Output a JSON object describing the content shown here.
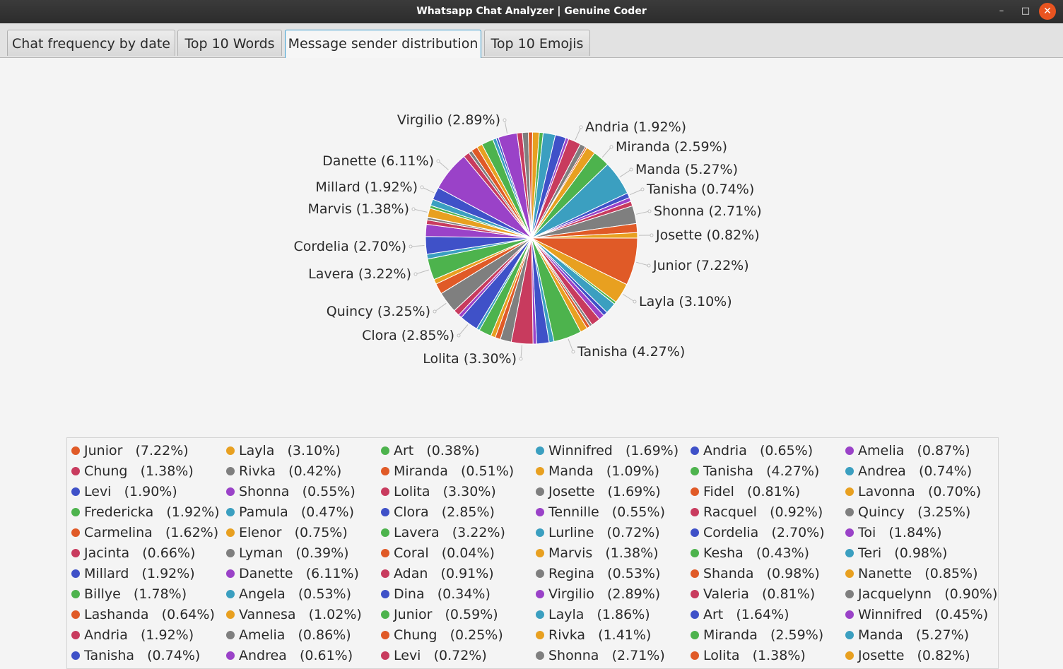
{
  "window": {
    "title": "Whatsapp Chat Analyzer | Genuine Coder",
    "minimize_glyph": "–",
    "maximize_glyph": "□",
    "close_glyph": "✕"
  },
  "tabs": [
    {
      "label": "Chat frequency by date",
      "active": false
    },
    {
      "label": "Top 10 Words",
      "active": false
    },
    {
      "label": "Message sender distribution",
      "active": true
    },
    {
      "label": "Top 10 Emojis",
      "active": false
    }
  ],
  "palette": [
    "#e05a27",
    "#e8a020",
    "#4db34d",
    "#3b9fc0",
    "#3f51c8",
    "#9a42c8",
    "#c83b5e",
    "#7f7f7f"
  ],
  "chart_data": {
    "type": "pie",
    "start_angle_deg": 0,
    "direction": "clockwise",
    "legend_position": "bottom",
    "slices": [
      {
        "name": "Junior",
        "value": 7.22,
        "label": "Junior   (7.22%)"
      },
      {
        "name": "Layla",
        "value": 3.1,
        "label": "Layla   (3.10%)"
      },
      {
        "name": "Art",
        "value": 0.38,
        "label": "Art   (0.38%)"
      },
      {
        "name": "Winnifred",
        "value": 1.69,
        "label": "Winnifred   (1.69%)"
      },
      {
        "name": "Andria",
        "value": 0.65,
        "label": "Andria   (0.65%)"
      },
      {
        "name": "Amelia",
        "value": 0.87,
        "label": "Amelia   (0.87%)"
      },
      {
        "name": "Chung",
        "value": 1.38,
        "label": "Chung   (1.38%)"
      },
      {
        "name": "Rivka",
        "value": 0.42,
        "label": "Rivka   (0.42%)"
      },
      {
        "name": "Miranda",
        "value": 0.51,
        "label": "Miranda   (0.51%)"
      },
      {
        "name": "Manda",
        "value": 1.09,
        "label": "Manda   (1.09%)"
      },
      {
        "name": "Tanisha",
        "value": 4.27,
        "label": "Tanisha   (4.27%)"
      },
      {
        "name": "Andrea",
        "value": 0.74,
        "label": "Andrea   (0.74%)"
      },
      {
        "name": "Levi",
        "value": 1.9,
        "label": "Levi   (1.90%)"
      },
      {
        "name": "Shonna",
        "value": 0.55,
        "label": "Shonna   (0.55%)"
      },
      {
        "name": "Lolita",
        "value": 3.3,
        "label": "Lolita   (3.30%)"
      },
      {
        "name": "Josette",
        "value": 1.69,
        "label": "Josette   (1.69%)"
      },
      {
        "name": "Fidel",
        "value": 0.81,
        "label": "Fidel   (0.81%)"
      },
      {
        "name": "Lavonna",
        "value": 0.7,
        "label": "Lavonna   (0.70%)"
      },
      {
        "name": "Fredericka",
        "value": 1.92,
        "label": "Fredericka   (1.92%)"
      },
      {
        "name": "Pamula",
        "value": 0.47,
        "label": "Pamula   (0.47%)"
      },
      {
        "name": "Clora",
        "value": 2.85,
        "label": "Clora   (2.85%)"
      },
      {
        "name": "Tennille",
        "value": 0.55,
        "label": "Tennille   (0.55%)"
      },
      {
        "name": "Racquel",
        "value": 0.92,
        "label": "Racquel   (0.92%)"
      },
      {
        "name": "Quincy",
        "value": 3.25,
        "label": "Quincy   (3.25%)"
      },
      {
        "name": "Carmelina",
        "value": 1.62,
        "label": "Carmelina   (1.62%)"
      },
      {
        "name": "Elenor",
        "value": 0.75,
        "label": "Elenor   (0.75%)"
      },
      {
        "name": "Lavera",
        "value": 3.22,
        "label": "Lavera   (3.22%)"
      },
      {
        "name": "Lurline",
        "value": 0.72,
        "label": "Lurline   (0.72%)"
      },
      {
        "name": "Cordelia",
        "value": 2.7,
        "label": "Cordelia   (2.70%)"
      },
      {
        "name": "Toi",
        "value": 1.84,
        "label": "Toi   (1.84%)"
      },
      {
        "name": "Jacinta",
        "value": 0.66,
        "label": "Jacinta   (0.66%)"
      },
      {
        "name": "Lyman",
        "value": 0.39,
        "label": "Lyman   (0.39%)"
      },
      {
        "name": "Coral",
        "value": 0.04,
        "label": "Coral   (0.04%)"
      },
      {
        "name": "Marvis",
        "value": 1.38,
        "label": "Marvis   (1.38%)"
      },
      {
        "name": "Kesha",
        "value": 0.43,
        "label": "Kesha   (0.43%)"
      },
      {
        "name": "Teri",
        "value": 0.98,
        "label": "Teri   (0.98%)"
      },
      {
        "name": "Millard",
        "value": 1.92,
        "label": "Millard   (1.92%)"
      },
      {
        "name": "Danette",
        "value": 6.11,
        "label": "Danette   (6.11%)"
      },
      {
        "name": "Adan",
        "value": 0.91,
        "label": "Adan   (0.91%)"
      },
      {
        "name": "Regina",
        "value": 0.53,
        "label": "Regina   (0.53%)"
      },
      {
        "name": "Shanda",
        "value": 0.98,
        "label": "Shanda   (0.98%)"
      },
      {
        "name": "Nanette",
        "value": 0.85,
        "label": "Nanette   (0.85%)"
      },
      {
        "name": "Billye",
        "value": 1.78,
        "label": "Billye   (1.78%)"
      },
      {
        "name": "Angela",
        "value": 0.53,
        "label": "Angela   (0.53%)"
      },
      {
        "name": "Dina",
        "value": 0.34,
        "label": "Dina   (0.34%)"
      },
      {
        "name": "Virgilio",
        "value": 2.89,
        "label": "Virgilio   (2.89%)"
      },
      {
        "name": "Valeria",
        "value": 0.81,
        "label": "Valeria   (0.81%)"
      },
      {
        "name": "Jacquelynn",
        "value": 0.9,
        "label": "Jacquelynn   (0.90%)"
      },
      {
        "name": "Lashanda",
        "value": 0.64,
        "label": "Lashanda   (0.64%)"
      },
      {
        "name": "Vannesa",
        "value": 1.02,
        "label": "Vannesa   (1.02%)"
      },
      {
        "name": "Junior",
        "value": 0.59,
        "label": "Junior   (0.59%)"
      },
      {
        "name": "Layla",
        "value": 1.86,
        "label": "Layla   (1.86%)"
      },
      {
        "name": "Art",
        "value": 1.64,
        "label": "Art   (1.64%)"
      },
      {
        "name": "Winnifred",
        "value": 0.45,
        "label": "Winnifred   (0.45%)"
      },
      {
        "name": "Andria",
        "value": 1.92,
        "label": "Andria   (1.92%)"
      },
      {
        "name": "Amelia",
        "value": 0.86,
        "label": "Amelia   (0.86%)"
      },
      {
        "name": "Chung",
        "value": 0.25,
        "label": "Chung   (0.25%)"
      },
      {
        "name": "Rivka",
        "value": 1.41,
        "label": "Rivka   (1.41%)"
      },
      {
        "name": "Miranda",
        "value": 2.59,
        "label": "Miranda   (2.59%)"
      },
      {
        "name": "Manda",
        "value": 5.27,
        "label": "Manda   (5.27%)"
      },
      {
        "name": "Tanisha",
        "value": 0.74,
        "label": "Tanisha   (0.74%)"
      },
      {
        "name": "Andrea",
        "value": 0.61,
        "label": "Andrea   (0.61%)"
      },
      {
        "name": "Levi",
        "value": 0.72,
        "label": "Levi   (0.72%)"
      },
      {
        "name": "Shonna",
        "value": 2.71,
        "label": "Shonna   (2.71%)"
      },
      {
        "name": "Lolita",
        "value": 1.38,
        "label": "Lolita   (1.38%)"
      },
      {
        "name": "Josette",
        "value": 0.82,
        "label": "Josette   (0.82%)"
      }
    ],
    "pie_labels": [
      {
        "label": "Junior   (7.22%)"
      },
      {
        "label": "Layla   (3.10%)"
      },
      {
        "label": "Tanisha   (4.27%)"
      },
      {
        "label": "Lolita   (3.30%)"
      },
      {
        "label": "Clora   (2.85%)"
      },
      {
        "label": "Quincy   (3.25%)"
      },
      {
        "label": "Lavera   (3.22%)"
      },
      {
        "label": "Cordelia   (2.70%)"
      },
      {
        "label": "Marvis   (1.38%)"
      },
      {
        "label": "Millard   (1.92%)"
      },
      {
        "label": "Danette   (6.11%)"
      },
      {
        "label": "Virgilio   (2.89%)"
      },
      {
        "label": "Andria   (1.92%)"
      },
      {
        "label": "Miranda   (2.59%)"
      },
      {
        "label": "Manda   (5.27%)"
      },
      {
        "label": "Tanisha   (0.74%)"
      },
      {
        "label": "Shonna   (2.71%)"
      },
      {
        "label": "Josette   (0.82%)"
      }
    ]
  }
}
